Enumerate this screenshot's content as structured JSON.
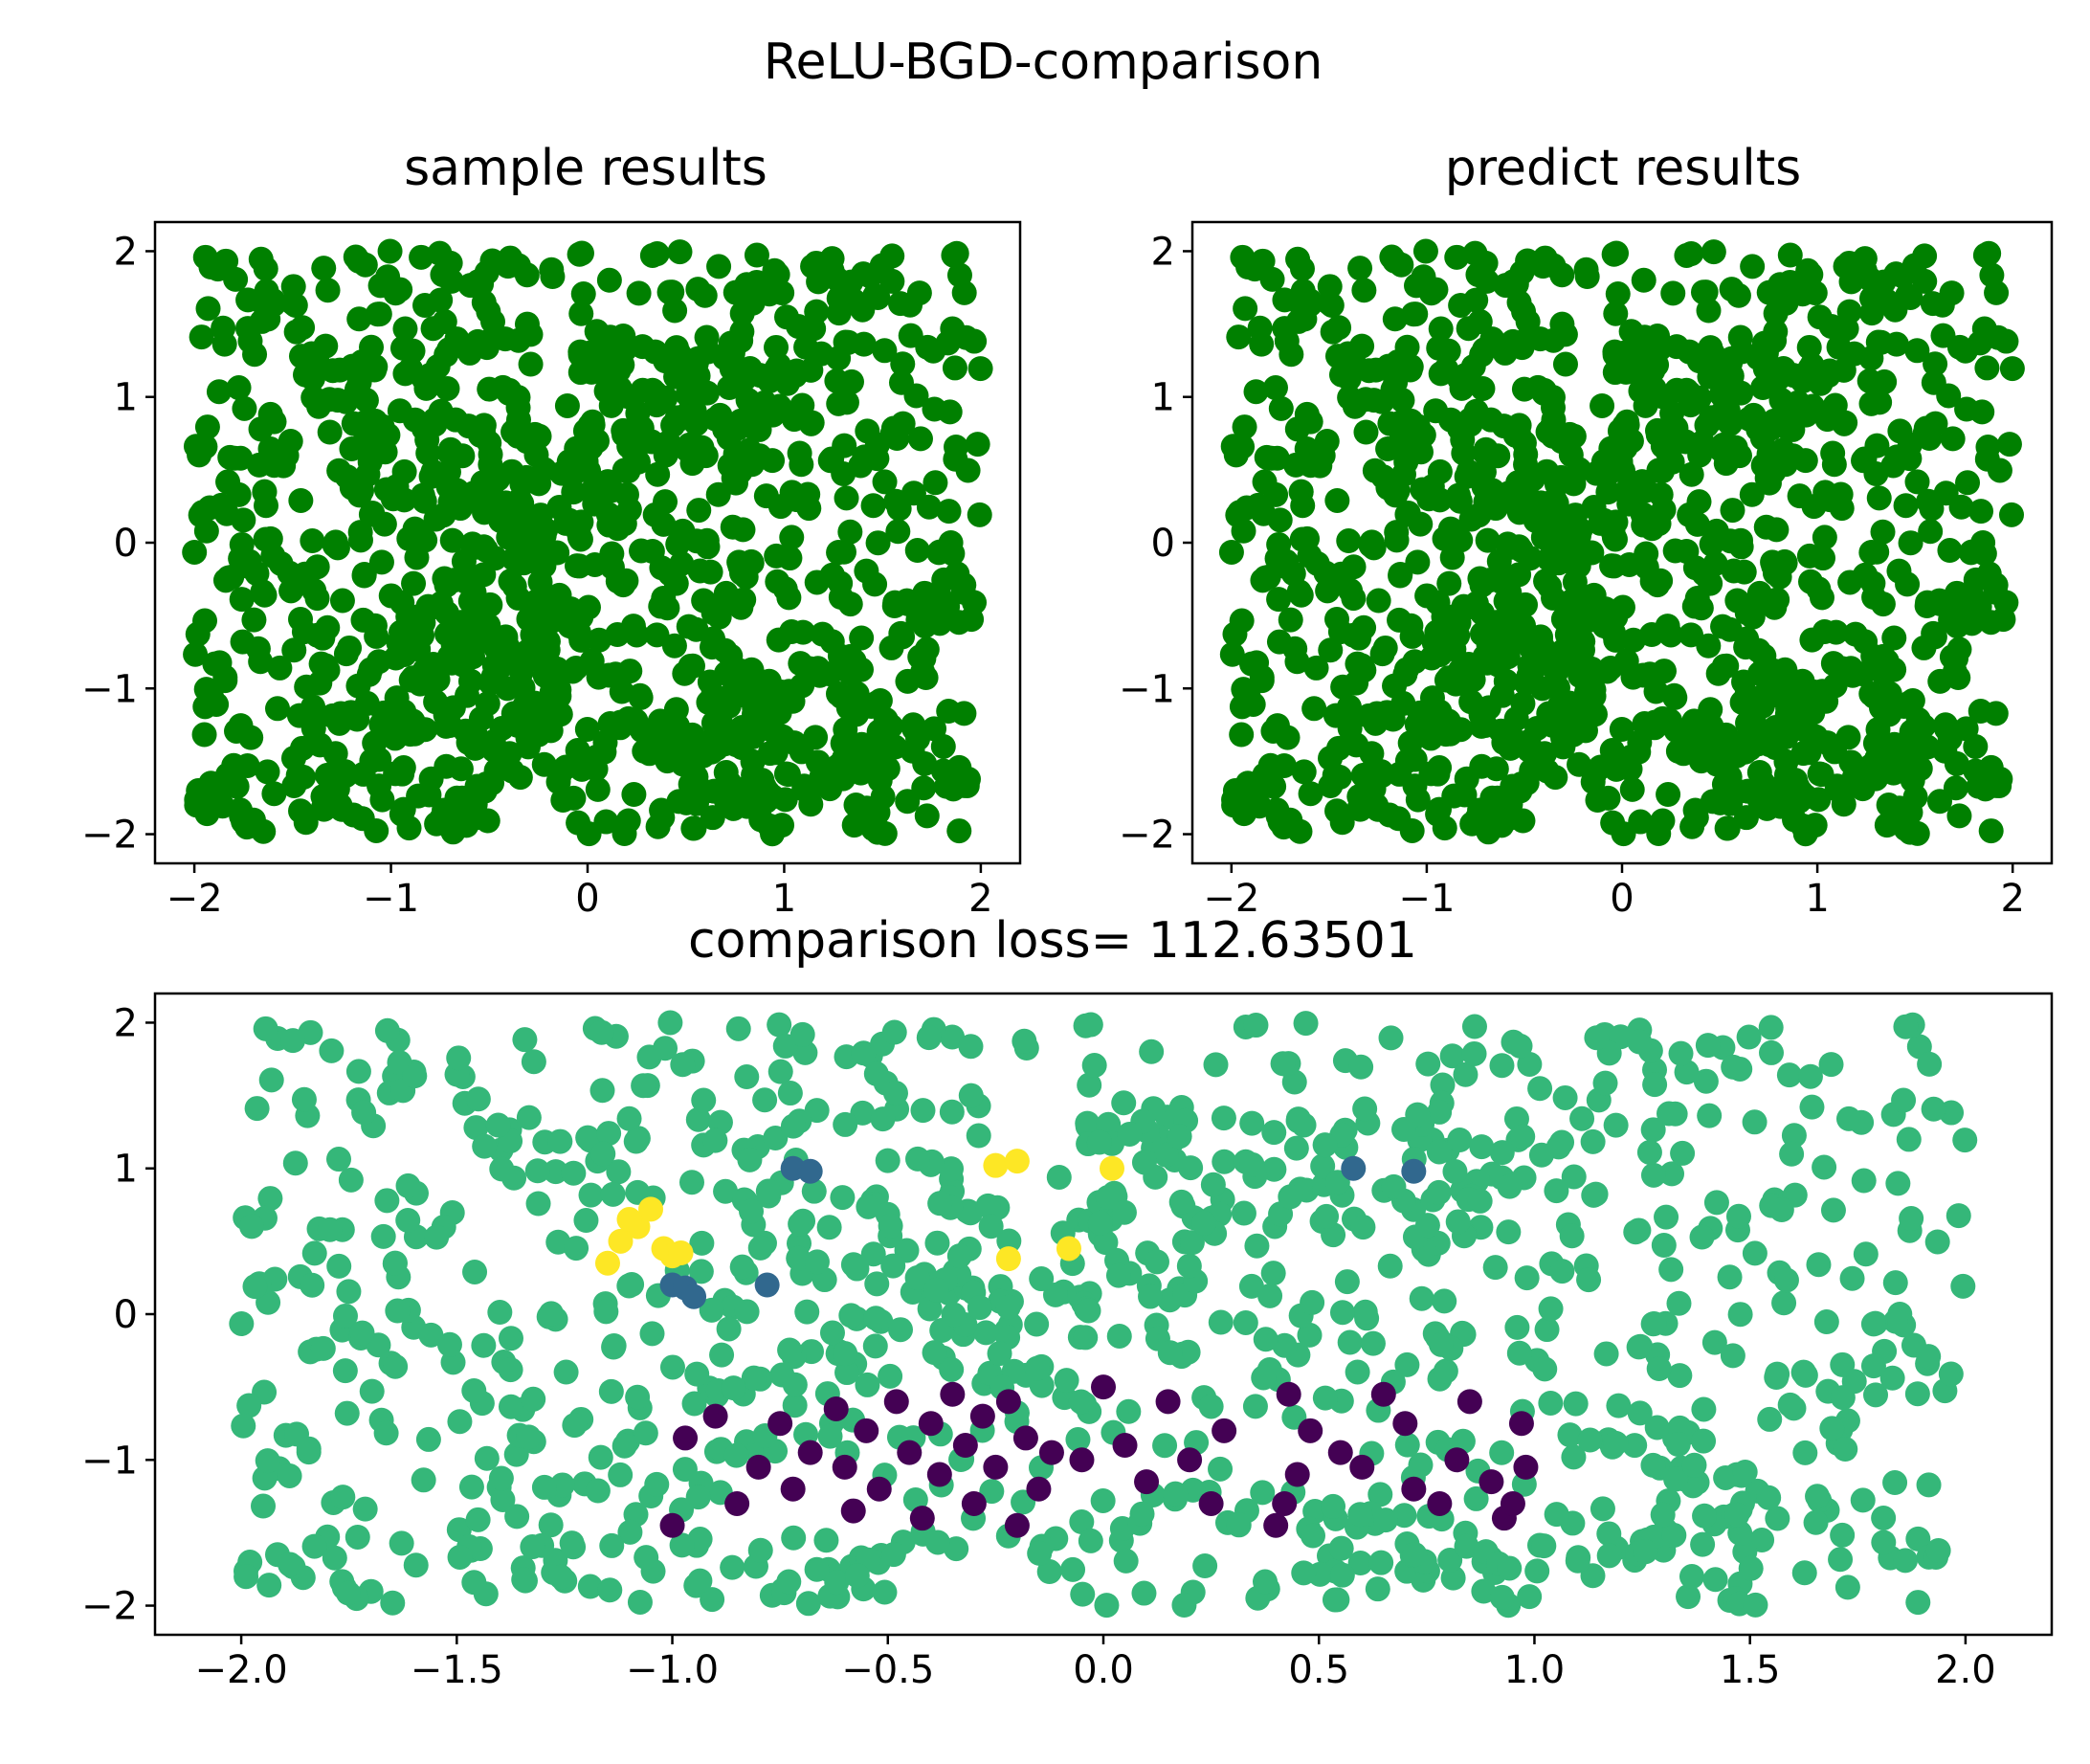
{
  "figure": {
    "suptitle": "ReLU-BGD-comparison",
    "colors": {
      "sample_points": "#008000",
      "predict_points": "#008000",
      "correct": "#35b779",
      "false_negative": "#440154",
      "false_positive": "#fde725",
      "minor": "#31688e",
      "axes": "#000000",
      "background": "#ffffff"
    }
  },
  "chart_data": [
    {
      "id": "sample",
      "type": "scatter",
      "title": "sample results",
      "xlabel": "",
      "ylabel": "",
      "xlim": [
        -2.2,
        2.2
      ],
      "ylim": [
        -2.2,
        2.2
      ],
      "xticks": [
        -2,
        -1,
        0,
        1,
        2
      ],
      "xtick_labels": [
        "−2",
        "−1",
        "0",
        "1",
        "2"
      ],
      "yticks": [
        -2,
        -1,
        0,
        1,
        2
      ],
      "ytick_labels": [
        "−2",
        "−1",
        "0",
        "1",
        "2"
      ],
      "grid": false,
      "point_count": 1000,
      "x_range": [
        -2,
        2
      ],
      "y_range": [
        -2,
        2
      ],
      "color": "#008000",
      "dense_clusters": [
        [
          -0.5,
          -0.9
        ],
        [
          -0.4,
          0.4
        ],
        [
          0.5,
          1.0
        ],
        [
          1.0,
          -1.3
        ]
      ]
    },
    {
      "id": "predict",
      "type": "scatter",
      "title": "predict results",
      "xlabel": "",
      "ylabel": "",
      "xlim": [
        -2.2,
        2.2
      ],
      "ylim": [
        -2.2,
        2.2
      ],
      "xticks": [
        -2,
        -1,
        0,
        1,
        2
      ],
      "xtick_labels": [
        "−2",
        "−1",
        "0",
        "1",
        "2"
      ],
      "yticks": [
        -2,
        -1,
        0,
        1,
        2
      ],
      "ytick_labels": [
        "−2",
        "−1",
        "0",
        "1",
        "2"
      ],
      "grid": false,
      "point_count": 1000,
      "x_range": [
        -2,
        2
      ],
      "y_range": [
        -2,
        2
      ],
      "color": "#008000"
    },
    {
      "id": "comparison",
      "type": "scatter",
      "title": "comparison loss= 112.63501",
      "xlabel": "",
      "ylabel": "",
      "xlim": [
        -2.2,
        2.2
      ],
      "ylim": [
        -2.2,
        2.2
      ],
      "xticks": [
        -2.0,
        -1.5,
        -1.0,
        -0.5,
        0.0,
        0.5,
        1.0,
        1.5,
        2.0
      ],
      "xtick_labels": [
        "−2.0",
        "−1.5",
        "−1.0",
        "−0.5",
        "0.0",
        "0.5",
        "1.0",
        "1.5",
        "2.0"
      ],
      "yticks": [
        -2,
        -1,
        0,
        1,
        2
      ],
      "ytick_labels": [
        "−2",
        "−1",
        "0",
        "1",
        "2"
      ],
      "grid": false,
      "point_count": 1000,
      "default_color": "#35b779",
      "highlight_points": {
        "yellow": [
          [
            -1.15,
            0.35
          ],
          [
            -1.12,
            0.5
          ],
          [
            -1.08,
            0.6
          ],
          [
            -1.05,
            0.72
          ],
          [
            -1.02,
            0.45
          ],
          [
            -1.0,
            0.4
          ],
          [
            -1.1,
            0.65
          ],
          [
            -0.98,
            0.42
          ],
          [
            -0.25,
            1.02
          ],
          [
            -0.2,
            1.05
          ],
          [
            -0.22,
            0.38
          ],
          [
            -0.08,
            0.45
          ],
          [
            0.02,
            1.0
          ]
        ],
        "blue": [
          [
            -1.0,
            0.2
          ],
          [
            -0.97,
            0.18
          ],
          [
            -0.95,
            0.12
          ],
          [
            -0.78,
            0.2
          ],
          [
            -0.72,
            1.0
          ],
          [
            -0.68,
            0.98
          ],
          [
            0.58,
            1.0
          ],
          [
            0.72,
            0.98
          ]
        ],
        "purple": [
          [
            -1.0,
            -1.45
          ],
          [
            -0.97,
            -0.85
          ],
          [
            -0.9,
            -0.7
          ],
          [
            -0.85,
            -1.3
          ],
          [
            -0.8,
            -1.05
          ],
          [
            -0.75,
            -0.75
          ],
          [
            -0.72,
            -1.2
          ],
          [
            -0.68,
            -0.95
          ],
          [
            -0.62,
            -0.65
          ],
          [
            -0.6,
            -1.05
          ],
          [
            -0.58,
            -1.35
          ],
          [
            -0.55,
            -0.8
          ],
          [
            -0.52,
            -1.2
          ],
          [
            -0.48,
            -0.6
          ],
          [
            -0.45,
            -0.95
          ],
          [
            -0.42,
            -1.4
          ],
          [
            -0.4,
            -0.75
          ],
          [
            -0.38,
            -1.1
          ],
          [
            -0.35,
            -0.55
          ],
          [
            -0.32,
            -0.9
          ],
          [
            -0.3,
            -1.3
          ],
          [
            -0.28,
            -0.7
          ],
          [
            -0.25,
            -1.05
          ],
          [
            -0.22,
            -0.6
          ],
          [
            -0.2,
            -1.45
          ],
          [
            -0.18,
            -0.85
          ],
          [
            -0.15,
            -1.2
          ],
          [
            -0.12,
            -0.95
          ],
          [
            -0.05,
            -1.0
          ],
          [
            0.0,
            -0.5
          ],
          [
            0.05,
            -0.9
          ],
          [
            0.1,
            -1.15
          ],
          [
            0.15,
            -0.6
          ],
          [
            0.2,
            -1.0
          ],
          [
            0.25,
            -1.3
          ],
          [
            0.28,
            -0.8
          ],
          [
            0.4,
            -1.45
          ],
          [
            0.42,
            -1.3
          ],
          [
            0.43,
            -0.55
          ],
          [
            0.45,
            -1.1
          ],
          [
            0.48,
            -0.8
          ],
          [
            0.55,
            -0.95
          ],
          [
            0.6,
            -1.05
          ],
          [
            0.65,
            -0.55
          ],
          [
            0.7,
            -0.75
          ],
          [
            0.72,
            -1.2
          ],
          [
            0.78,
            -1.3
          ],
          [
            0.82,
            -1.0
          ],
          [
            0.85,
            -0.6
          ],
          [
            0.9,
            -1.15
          ],
          [
            0.93,
            -1.4
          ],
          [
            0.95,
            -1.3
          ],
          [
            0.97,
            -0.75
          ],
          [
            0.98,
            -1.05
          ]
        ]
      },
      "legend": false
    }
  ]
}
